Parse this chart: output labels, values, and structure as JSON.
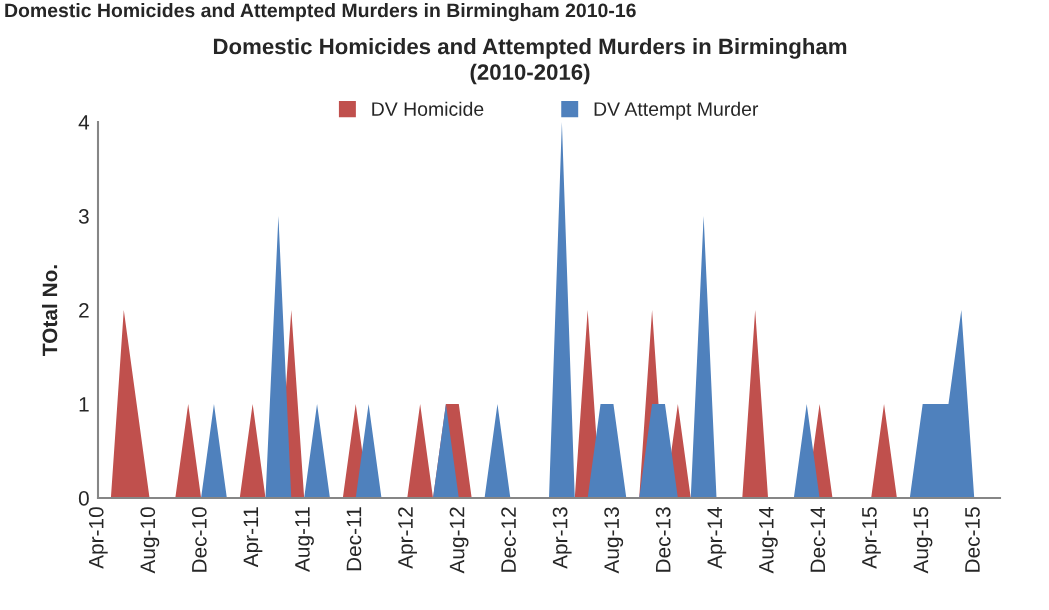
{
  "chart_data": {
    "type": "area",
    "title": "Domestic Homicides and Attempted Murders in Birmingham\n(2010-2016)",
    "annotations": [
      "Domestic Homicides and Attempted Murders in Birmingham 2010-16"
    ],
    "ylabel": "TOtal No.",
    "categories": [
      "Apr-10",
      null,
      null,
      null,
      "Aug-10",
      null,
      null,
      null,
      "Dec-10",
      null,
      null,
      null,
      "Apr-11",
      null,
      null,
      null,
      "Aug-11",
      null,
      null,
      null,
      "Dec-11",
      null,
      null,
      null,
      "Apr-12",
      null,
      null,
      null,
      "Aug-12",
      null,
      null,
      null,
      "Dec-12",
      null,
      null,
      null,
      "Apr-13",
      null,
      null,
      null,
      "Aug-13",
      null,
      null,
      null,
      "Dec-13",
      null,
      null,
      null,
      "Apr-14",
      null,
      null,
      null,
      "Aug-14",
      null,
      null,
      null,
      "Dec-14",
      null,
      null,
      null,
      "Apr-15",
      null,
      null,
      null,
      "Aug-15",
      null,
      null,
      null,
      "Dec-15",
      null,
      null
    ],
    "series": [
      {
        "name": "DV Homicide",
        "color": "#c0504d",
        "values": [
          0,
          0,
          2,
          1,
          0,
          0,
          0,
          1,
          0,
          0,
          0,
          0,
          1,
          0,
          0,
          2,
          0,
          0,
          0,
          0,
          1,
          0,
          0,
          0,
          0,
          1,
          0,
          1,
          1,
          0,
          0,
          0,
          0,
          0,
          0,
          0,
          0,
          0,
          2,
          0,
          0,
          0,
          0,
          2,
          0,
          1,
          0,
          0,
          0,
          0,
          0,
          2,
          0,
          0,
          0,
          0,
          1,
          0,
          0,
          0,
          0,
          1,
          0,
          0,
          0,
          0,
          0,
          0,
          0,
          0,
          0
        ]
      },
      {
        "name": "DV Attempt Murder",
        "color": "#4f81bd",
        "values": [
          0,
          0,
          0,
          0,
          0,
          0,
          0,
          0,
          0,
          1,
          0,
          0,
          0,
          0,
          3,
          0,
          0,
          1,
          0,
          0,
          0,
          1,
          0,
          0,
          0,
          0,
          0,
          1,
          0,
          0,
          0,
          1,
          0,
          0,
          0,
          0,
          4,
          0,
          0,
          1,
          1,
          0,
          0,
          1,
          1,
          0,
          0,
          3,
          0,
          0,
          0,
          0,
          0,
          0,
          0,
          1,
          0,
          0,
          0,
          0,
          0,
          0,
          0,
          0,
          1,
          1,
          1,
          2,
          0,
          0,
          0
        ]
      }
    ],
    "ylim": [
      0,
      4
    ],
    "yticks": [
      0,
      1,
      2,
      3,
      4
    ],
    "grid": false,
    "legend": "top"
  }
}
